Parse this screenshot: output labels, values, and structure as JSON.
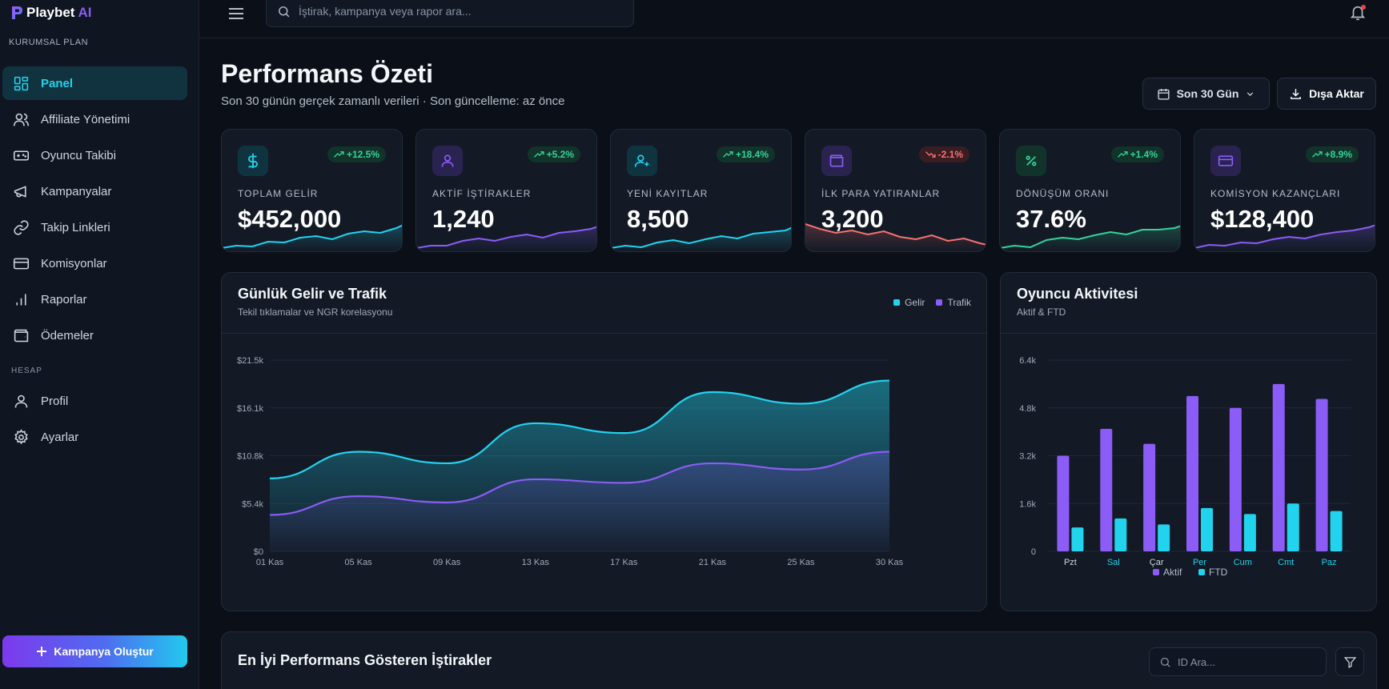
{
  "brand": {
    "name": "Playbet",
    "suffix": "AI",
    "plan": "KURUMSAL PLAN"
  },
  "sidebar": {
    "items": [
      {
        "label": "Panel",
        "icon": "dashboard-icon",
        "active": true
      },
      {
        "label": "Affiliate Yönetimi",
        "icon": "users-icon"
      },
      {
        "label": "Oyuncu Takibi",
        "icon": "gamepad-icon"
      },
      {
        "label": "Kampanyalar",
        "icon": "megaphone-icon"
      },
      {
        "label": "Takip Linkleri",
        "icon": "link-icon"
      },
      {
        "label": "Komisyonlar",
        "icon": "credit-card-icon"
      },
      {
        "label": "Raporlar",
        "icon": "bar-chart-icon"
      },
      {
        "label": "Ödemeler",
        "icon": "wallet-icon"
      }
    ],
    "account_label": "HESAP",
    "account_items": [
      {
        "label": "Profil",
        "icon": "user-icon"
      },
      {
        "label": "Ayarlar",
        "icon": "gear-icon"
      }
    ],
    "create_button": "Kampanya Oluştur"
  },
  "topbar": {
    "search_placeholder": "İştirak, kampanya veya rapor ara..."
  },
  "header": {
    "title": "Performans Özeti",
    "subtitle": "Son 30 günün gerçek zamanlı verileri · Son güncelleme: az önce",
    "range_button": "Son 30 Gün",
    "export_button": "Dışa Aktar"
  },
  "kpis": [
    {
      "label": "TOPLAM GELİR",
      "value": "$452,000",
      "change": "+12.5%",
      "trend": "up",
      "icon": "dollar-icon",
      "color": "#22d3ee"
    },
    {
      "label": "AKTİF İŞTİRAKLER",
      "value": "1,240",
      "change": "+5.2%",
      "trend": "up",
      "icon": "user-icon",
      "color": "#8b5cf6"
    },
    {
      "label": "YENİ KAYITLAR",
      "value": "8,500",
      "change": "+18.4%",
      "trend": "up",
      "icon": "user-plus-icon",
      "color": "#22d3ee"
    },
    {
      "label": "İLK PARA YATIRANLAR",
      "value": "3,200",
      "change": "-2.1%",
      "trend": "down",
      "icon": "wallet-icon",
      "color": "#f87171"
    },
    {
      "label": "DÖNÜŞÜM ORANI",
      "value": "37.6%",
      "change": "+1.4%",
      "trend": "up",
      "icon": "percent-icon",
      "color": "#34d399"
    },
    {
      "label": "KOMİSYON KAZANÇLARI",
      "value": "$128,400",
      "change": "+8.9%",
      "trend": "up",
      "icon": "card-icon",
      "color": "#8b5cf6"
    }
  ],
  "revenue_panel": {
    "title": "Günlük Gelir ve Trafik",
    "subtitle": "Tekil tıklamalar ve NGR korelasyonu",
    "legend": [
      "Gelir",
      "Trafik"
    ]
  },
  "activity_panel": {
    "title": "Oyuncu Aktivitesi",
    "subtitle": "Aktif & FTD"
  },
  "affiliates_panel": {
    "title": "En İyi Performans Gösteren İştirakler",
    "search_placeholder": "ID Ara..."
  },
  "colors": {
    "cyan": "#22d3ee",
    "purple": "#8b5cf6",
    "green": "#34d399",
    "red": "#f87171"
  },
  "chart_data": [
    {
      "type": "area",
      "title": "Günlük Gelir ve Trafik",
      "x": [
        "01 Kas",
        "05 Kas",
        "09 Kas",
        "13 Kas",
        "17 Kas",
        "21 Kas",
        "25 Kas",
        "30 Kas"
      ],
      "y_ticks": [
        "$0",
        "$5.4k",
        "$10.8k",
        "$16.1k",
        "$21.5k"
      ],
      "ylim": [
        0,
        21500
      ],
      "grid": true,
      "legend_position": "top-right",
      "series": [
        {
          "name": "Gelir",
          "color": "#22d3ee",
          "values": [
            8200,
            11200,
            9900,
            14400,
            13300,
            17900,
            16600,
            19200
          ]
        },
        {
          "name": "Trafik",
          "color": "#8b5cf6",
          "values": [
            4100,
            6200,
            5500,
            8100,
            7700,
            9900,
            9200,
            11200
          ]
        }
      ]
    },
    {
      "type": "bar",
      "title": "Oyuncu Aktivitesi",
      "categories": [
        "Pzt",
        "Sal",
        "Çar",
        "Per",
        "Cum",
        "Cmt",
        "Paz"
      ],
      "y_ticks": [
        "0",
        "1.6k",
        "3.2k",
        "4.8k",
        "6.4k"
      ],
      "ylim": [
        0,
        6400
      ],
      "grid": true,
      "legend_position": "bottom",
      "series": [
        {
          "name": "Aktif",
          "color": "#8b5cf6",
          "values": [
            3200,
            4100,
            3600,
            5200,
            4800,
            5600,
            5100
          ]
        },
        {
          "name": "FTD",
          "color": "#22d3ee",
          "values": [
            800,
            1100,
            900,
            1450,
            1250,
            1600,
            1350
          ]
        }
      ]
    }
  ]
}
